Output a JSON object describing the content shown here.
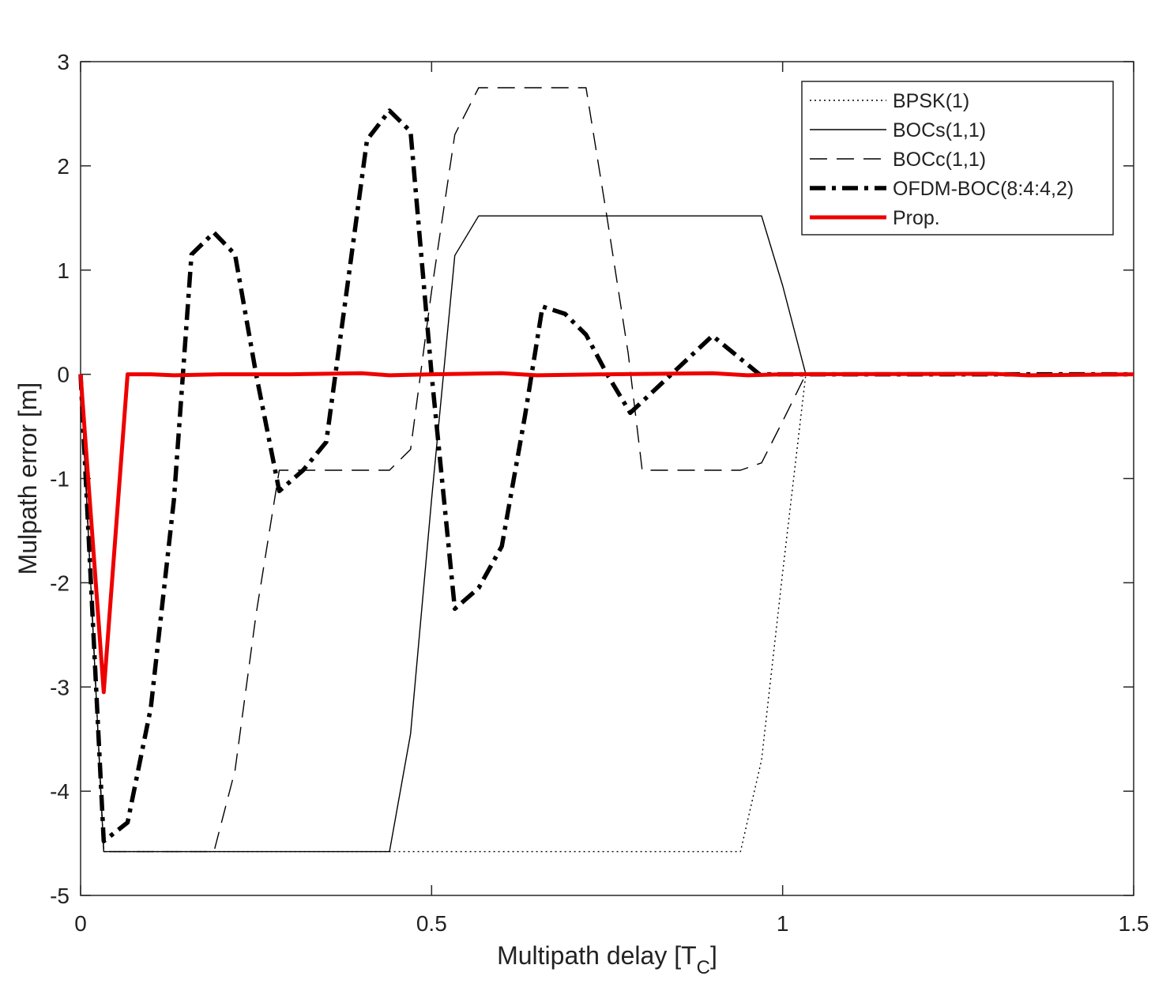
{
  "chart_data": {
    "type": "line",
    "title": "",
    "xlabel": "Multipath delay [T",
    "xlabel_subscript": "C",
    "xlabel_suffix": "]",
    "ylabel": "Mulpath error [m]",
    "xlim": [
      0,
      1.5
    ],
    "ylim": [
      -5,
      3
    ],
    "xticks": [
      0,
      0.5,
      1,
      1.5
    ],
    "xtick_labels": [
      "0",
      "0.5",
      "1",
      "1.5"
    ],
    "yticks": [
      3,
      2,
      1,
      0,
      -1,
      -2,
      -3,
      -4,
      -5
    ],
    "ytick_labels": [
      "3",
      "2",
      "1",
      "0",
      "-1",
      "-2",
      "-3",
      "-4",
      "-5"
    ],
    "grid": false,
    "legend_position": "top-right",
    "series": [
      {
        "name": "BPSK(1)",
        "style": "dotted",
        "color": "#000000",
        "points": [
          [
            0,
            0
          ],
          [
            0.033,
            -4.58
          ],
          [
            0.94,
            -4.58
          ],
          [
            0.97,
            -3.7
          ],
          [
            1.0,
            -1.9
          ],
          [
            1.033,
            0
          ],
          [
            1.5,
            0
          ]
        ]
      },
      {
        "name": "BOCs(1,1)",
        "style": "solid",
        "color": "#000000",
        "points": [
          [
            0,
            0
          ],
          [
            0.033,
            -4.58
          ],
          [
            0.44,
            -4.58
          ],
          [
            0.47,
            -3.45
          ],
          [
            0.5,
            -1.2
          ],
          [
            0.533,
            1.14
          ],
          [
            0.567,
            1.52
          ],
          [
            0.97,
            1.52
          ],
          [
            1.0,
            0.85
          ],
          [
            1.033,
            0
          ],
          [
            1.5,
            0
          ]
        ]
      },
      {
        "name": "BOCc(1,1)",
        "style": "dashed",
        "color": "#000000",
        "points": [
          [
            0,
            0
          ],
          [
            0.033,
            -4.58
          ],
          [
            0.19,
            -4.58
          ],
          [
            0.22,
            -3.8
          ],
          [
            0.25,
            -2.3
          ],
          [
            0.283,
            -0.92
          ],
          [
            0.44,
            -0.92
          ],
          [
            0.47,
            -0.72
          ],
          [
            0.5,
            0.8
          ],
          [
            0.533,
            2.3
          ],
          [
            0.567,
            2.75
          ],
          [
            0.72,
            2.75
          ],
          [
            0.75,
            1.5
          ],
          [
            0.78,
            0.2
          ],
          [
            0.8,
            -0.92
          ],
          [
            0.94,
            -0.92
          ],
          [
            0.97,
            -0.85
          ],
          [
            1.0,
            -0.45
          ],
          [
            1.033,
            0
          ],
          [
            1.5,
            0
          ]
        ]
      },
      {
        "name": "OFDM-BOC(8:4:4,2)",
        "style": "dashdot",
        "color": "#000000",
        "points": [
          [
            0,
            0
          ],
          [
            0.033,
            -4.48
          ],
          [
            0.067,
            -4.3
          ],
          [
            0.1,
            -3.2
          ],
          [
            0.133,
            -1.2
          ],
          [
            0.158,
            1.15
          ],
          [
            0.19,
            1.36
          ],
          [
            0.22,
            1.15
          ],
          [
            0.25,
            0
          ],
          [
            0.283,
            -1.12
          ],
          [
            0.317,
            -0.92
          ],
          [
            0.35,
            -0.65
          ],
          [
            0.383,
            1.0
          ],
          [
            0.408,
            2.25
          ],
          [
            0.44,
            2.53
          ],
          [
            0.47,
            2.33
          ],
          [
            0.5,
            0
          ],
          [
            0.533,
            -2.25
          ],
          [
            0.567,
            -2.05
          ],
          [
            0.6,
            -1.65
          ],
          [
            0.633,
            -0.4
          ],
          [
            0.658,
            0.65
          ],
          [
            0.69,
            0.58
          ],
          [
            0.72,
            0.38
          ],
          [
            0.75,
            0
          ],
          [
            0.783,
            -0.37
          ],
          [
            0.9,
            0.37
          ],
          [
            0.967,
            0
          ],
          [
            1.5,
            0
          ]
        ]
      },
      {
        "name": "Prop.",
        "style": "solid-thick",
        "color": "#ee0000",
        "points": [
          [
            0,
            0
          ],
          [
            0.033,
            -3.05
          ],
          [
            0.067,
            0
          ],
          [
            0.1,
            0
          ],
          [
            0.133,
            -0.01
          ],
          [
            0.2,
            0
          ],
          [
            0.3,
            0
          ],
          [
            0.4,
            0.01
          ],
          [
            0.44,
            -0.01
          ],
          [
            0.5,
            0
          ],
          [
            0.6,
            0.01
          ],
          [
            0.65,
            -0.01
          ],
          [
            0.75,
            0
          ],
          [
            0.9,
            0.01
          ],
          [
            0.95,
            -0.01
          ],
          [
            1.0,
            0
          ],
          [
            1.3,
            0.005
          ],
          [
            1.35,
            -0.01
          ],
          [
            1.5,
            0
          ]
        ]
      }
    ]
  }
}
